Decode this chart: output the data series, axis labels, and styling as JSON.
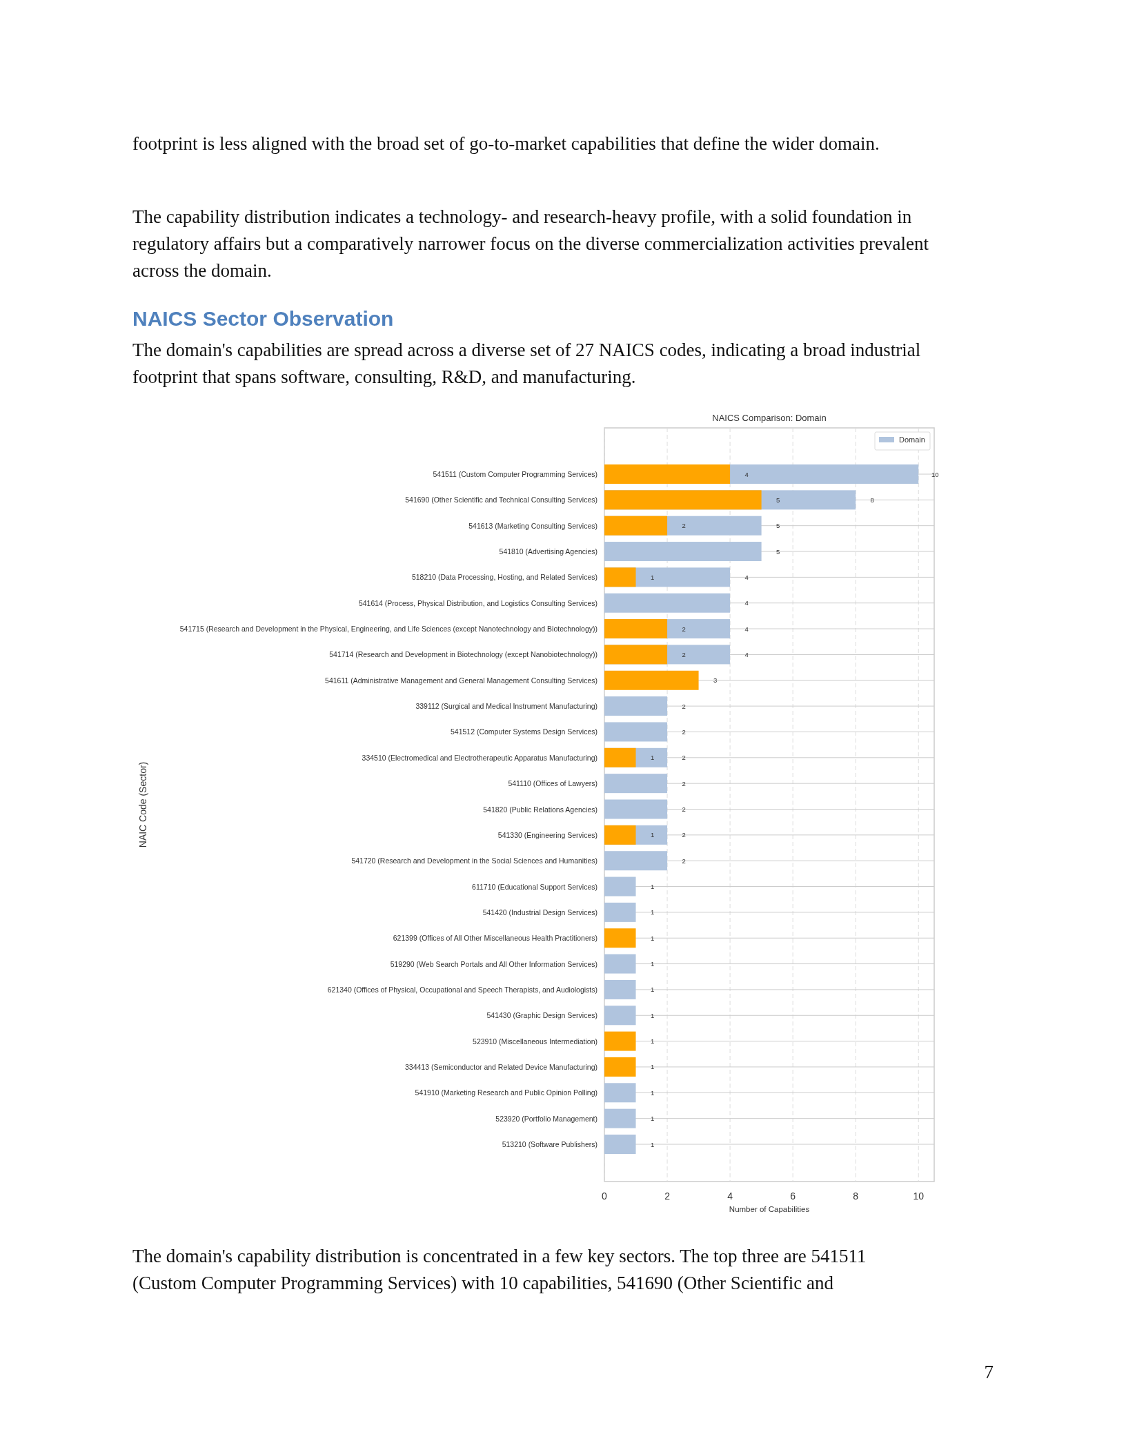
{
  "chart_data": {
    "type": "bar",
    "orientation": "horizontal",
    "title": "NAICS Comparison: Domain",
    "xlabel": "Number of Capabilities",
    "ylabel": "NAIC Code (Sector)",
    "categories": [
      "541511 (Custom Computer Programming Services)",
      "541690 (Other Scientific and Technical Consulting Services)",
      "541613 (Marketing Consulting Services)",
      "541810 (Advertising Agencies)",
      "518210 (Data Processing, Hosting, and Related Services)",
      "541614 (Process, Physical Distribution, and Logistics Consulting Services)",
      "541715 (Research and Development in the Physical, Engineering, and Life Sciences (except Nanotechnology and Biotechnology))",
      "541714 (Research and Development in Biotechnology (except Nanobiotechnology))",
      "541611 (Administrative Management and General Management Consulting Services)",
      "339112 (Surgical and Medical Instrument Manufacturing)",
      "541512 (Computer Systems Design Services)",
      "334510 (Electromedical and Electrotherapeutic Apparatus Manufacturing)",
      "541110 (Offices of Lawyers)",
      "541820 (Public Relations Agencies)",
      "541330 (Engineering Services)",
      "541720 (Research and Development in the Social Sciences and Humanities)",
      "611710 (Educational Support Services)",
      "541420 (Industrial Design Services)",
      "621399 (Offices of All Other Miscellaneous Health Practitioners)",
      "519290 (Web Search Portals and All Other Information Services)",
      "621340 (Offices of Physical, Occupational and Speech Therapists, and Audiologists)",
      "541430 (Graphic Design Services)",
      "523910 (Miscellaneous Intermediation)",
      "334413 (Semiconductor and Related Device Manufacturing)",
      "541910 (Marketing Research and Public Opinion Polling)",
      "523920 (Portfolio Management)",
      "513210 (Software Publishers)"
    ],
    "series": [
      {
        "name": "Domain",
        "color": "#b0c4de",
        "values": [
          10,
          8,
          5,
          5,
          4,
          4,
          4,
          4,
          null,
          2,
          2,
          2,
          2,
          2,
          2,
          2,
          1,
          1,
          null,
          1,
          1,
          1,
          null,
          null,
          1,
          1,
          1
        ]
      },
      {
        "color": "#ffa500",
        "values": [
          4,
          5,
          2,
          null,
          1,
          null,
          2,
          2,
          3,
          null,
          null,
          1,
          null,
          null,
          1,
          null,
          null,
          null,
          1,
          null,
          null,
          null,
          1,
          1,
          null,
          null,
          null
        ]
      }
    ],
    "xlim": [
      0,
      10.5
    ],
    "xticks": [
      0,
      2,
      4,
      6,
      8,
      10
    ],
    "grid": true,
    "legend": "top right",
    "data_labels": true,
    "annotations": [
      "footprint is less aligned with the broad set of go-to-market capabilities that define the wider domain.",
      "The capability distribution indicates a technology- and research-heavy profile, with a solid foundation in regulatory affairs but a comparatively narrower focus on the diverse commercialization activities prevalent across the domain.",
      "NAICS Sector Observation",
      "The domain's capabilities are spread across a diverse set of 27 NAICS codes, indicating a broad industrial footprint that spans software, consulting, R&D, and manufacturing.",
      "The domain's capability distribution is concentrated in a few key sectors. The top three are 541511 (Custom Computer Programming Services) with 10 capabilities, 541690 (Other Scientific and",
      "7"
    ]
  }
}
